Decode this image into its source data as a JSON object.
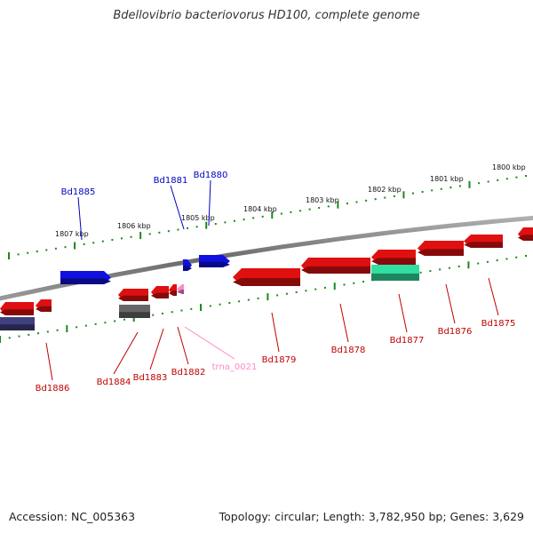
{
  "title": "Bdellovibrio bacteriovorus HD100, complete genome",
  "footer": {
    "accession": "Accession: NC_005363",
    "topology": "Topology: circular; Length: 3,782,950 bp; Genes: 3,629"
  },
  "colors": {
    "forward": "#1010e0",
    "reverse": "#e01010",
    "rna": "#ff88cc",
    "gray_gene": "#666666",
    "navy_gene": "#404080",
    "green_gene": "#30e0a0",
    "backbone": "#7a7a7a",
    "ticks": "#1a8a1a"
  },
  "scale_labels": [
    "1807 kbp",
    "1806 kbp",
    "1805 kbp",
    "1804 kbp",
    "1803 kbp",
    "1802 kbp",
    "1801 kbp",
    "1800 kbp"
  ],
  "genes": [
    {
      "label": "Bd1885",
      "strand": "forward",
      "color": "forward"
    },
    {
      "label": "Bd1881",
      "strand": "forward",
      "color": "forward"
    },
    {
      "label": "Bd1880",
      "strand": "forward",
      "color": "forward"
    },
    {
      "label": "Bd1886",
      "strand": "reverse",
      "color": "reverse"
    },
    {
      "label": "Bd1884",
      "strand": "reverse",
      "color": "gray_gene"
    },
    {
      "label": "Bd1883",
      "strand": "reverse",
      "color": "reverse"
    },
    {
      "label": "Bd1882",
      "strand": "reverse",
      "color": "reverse"
    },
    {
      "label": "trna_0021",
      "strand": "reverse",
      "color": "rna"
    },
    {
      "label": "Bd1879",
      "strand": "reverse",
      "color": "reverse"
    },
    {
      "label": "Bd1878",
      "strand": "reverse",
      "color": "reverse"
    },
    {
      "label": "Bd1877",
      "strand": "reverse",
      "color": "green_gene"
    },
    {
      "label": "Bd1876",
      "strand": "reverse",
      "color": "reverse"
    },
    {
      "label": "Bd1875",
      "strand": "reverse",
      "color": "reverse"
    }
  ]
}
